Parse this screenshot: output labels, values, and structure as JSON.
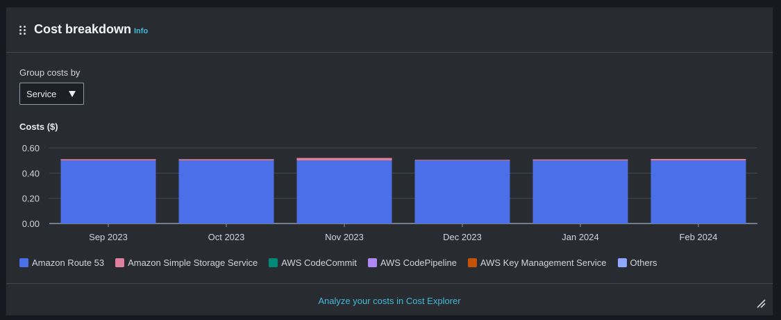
{
  "widget": {
    "title": "Cost breakdown",
    "info_label": "Info",
    "group_label": "Group costs by",
    "group_value": "Service",
    "costs_label": "Costs ($)",
    "footer_link": "Analyze your costs in Cost Explorer"
  },
  "colors": {
    "Amazon Route 53": "#4a6fe8",
    "Amazon Simple Storage Service": "#e07f9d",
    "AWS CodeCommit": "#018977",
    "AWS CodePipeline": "#b088f5",
    "AWS Key Management Service": "#c55305",
    "Others": "#8ea9ff"
  },
  "chart_data": {
    "type": "bar",
    "stacked": true,
    "categories": [
      "Sep 2023",
      "Oct 2023",
      "Nov 2023",
      "Dec 2023",
      "Jan 2024",
      "Feb 2024"
    ],
    "ylim": [
      0,
      0.6
    ],
    "yticks": [
      "0.00",
      "0.20",
      "0.40",
      "0.60"
    ],
    "ylabel": "Costs ($)",
    "grid": true,
    "legend_position": "bottom",
    "series": [
      {
        "name": "Amazon Route 53",
        "values": [
          0.5,
          0.5,
          0.5,
          0.5,
          0.5,
          0.5
        ]
      },
      {
        "name": "Amazon Simple Storage Service",
        "values": [
          0.01,
          0.01,
          0.02,
          0.005,
          0.008,
          0.012
        ]
      },
      {
        "name": "AWS CodeCommit",
        "values": [
          0,
          0,
          0,
          0,
          0,
          0
        ]
      },
      {
        "name": "AWS CodePipeline",
        "values": [
          0,
          0,
          0,
          0,
          0,
          0
        ]
      },
      {
        "name": "AWS Key Management Service",
        "values": [
          0,
          0,
          0,
          0,
          0,
          0
        ]
      },
      {
        "name": "Others",
        "values": [
          0,
          0,
          0,
          0,
          0,
          0
        ]
      }
    ]
  }
}
